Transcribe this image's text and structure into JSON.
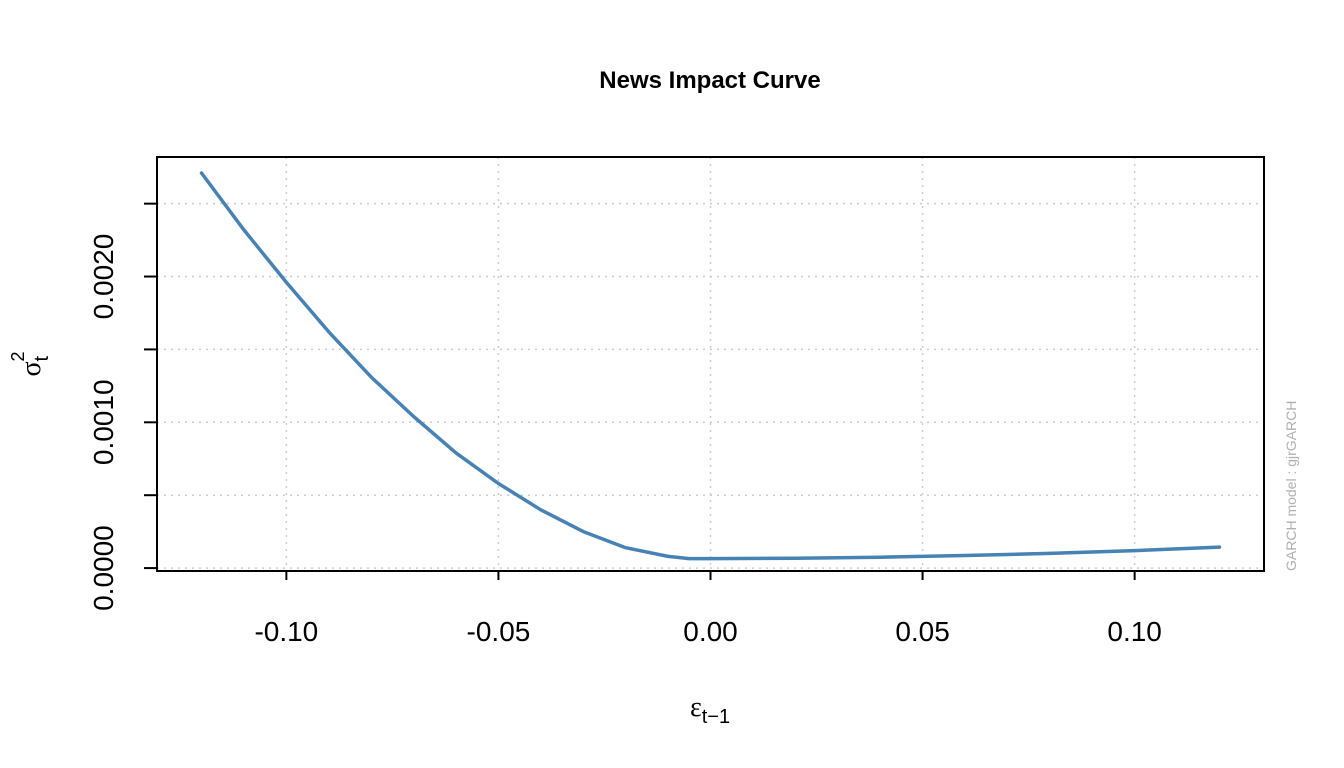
{
  "chart_data": {
    "type": "line",
    "title": "News Impact Curve",
    "xlabel": {
      "symbol": "ε",
      "subscript": "t−1"
    },
    "ylabel": {
      "symbol": "σ",
      "superscript": "2",
      "subscript": "t"
    },
    "side_note": "GARCH model :  gjrGARCH",
    "xlim": [
      -0.1305,
      0.1305
    ],
    "ylim": [
      -2e-05,
      0.00282
    ],
    "x_ticks": [
      -0.1,
      -0.05,
      0.0,
      0.05,
      0.1
    ],
    "x_tick_labels": [
      "-0.10",
      "-0.05",
      "0.00",
      "0.05",
      "0.10"
    ],
    "y_ticks": [
      0.0,
      0.0005,
      0.001,
      0.0015,
      0.002,
      0.0025
    ],
    "y_tick_labels": [
      "0.0000",
      "",
      "0.0010",
      "",
      "0.0020",
      ""
    ],
    "grid": true,
    "line_color": "#4682b4",
    "series": [
      {
        "x": [
          -0.12,
          -0.11,
          -0.1,
          -0.09,
          -0.08,
          -0.07,
          -0.06,
          -0.05,
          -0.04,
          -0.03,
          -0.02,
          -0.01,
          -0.005,
          0.0,
          0.02,
          0.04,
          0.06,
          0.08,
          0.1,
          0.12
        ],
        "y": [
          0.00271,
          0.00232,
          0.00196,
          0.00162,
          0.00131,
          0.00104,
          0.00079,
          0.00058,
          0.0004,
          0.00025,
          0.00014,
          8e-05,
          6.5e-05,
          6.5e-05,
          6.8e-05,
          7.5e-05,
          8.6e-05,
          0.000101,
          0.00012,
          0.000144
        ]
      }
    ]
  }
}
